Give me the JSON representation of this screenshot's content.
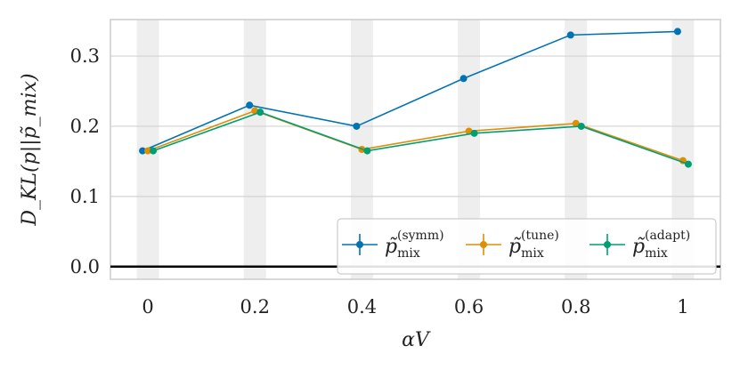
{
  "chart_data": {
    "type": "line",
    "xlabel": "αV",
    "ylabel": "D_KL(p||p̃_mix)",
    "x": [
      0,
      0.2,
      0.4,
      0.6,
      0.8,
      1
    ],
    "x_tick_labels": [
      "0",
      "0.2",
      "0.4",
      "0.6",
      "0.8",
      "1"
    ],
    "y_ticks": [
      0.0,
      0.1,
      0.2,
      0.3
    ],
    "y_tick_labels": [
      "0.0",
      "0.1",
      "0.2",
      "0.3"
    ],
    "xlim": [
      -0.07,
      1.07
    ],
    "ylim": [
      -0.018,
      0.352
    ],
    "grid": true,
    "legend_placement": "bottom-right",
    "shaded_bands": true,
    "zero_line": true,
    "series": [
      {
        "name": "p̃_mix^(symm)",
        "sub": "mix",
        "sup": "(symm)",
        "color": "#0173b2",
        "values": [
          0.165,
          0.23,
          0.2,
          0.268,
          0.33,
          0.335
        ]
      },
      {
        "name": "p̃_mix^(tune)",
        "sub": "mix",
        "sup": "(tune)",
        "color": "#de8f05",
        "values": [
          0.165,
          0.222,
          0.167,
          0.193,
          0.204,
          0.151
        ]
      },
      {
        "name": "p̃_mix^(adapt)",
        "sub": "mix",
        "sup": "(adapt)",
        "color": "#029e73",
        "values": [
          0.165,
          0.22,
          0.165,
          0.19,
          0.2,
          0.146
        ]
      }
    ]
  }
}
